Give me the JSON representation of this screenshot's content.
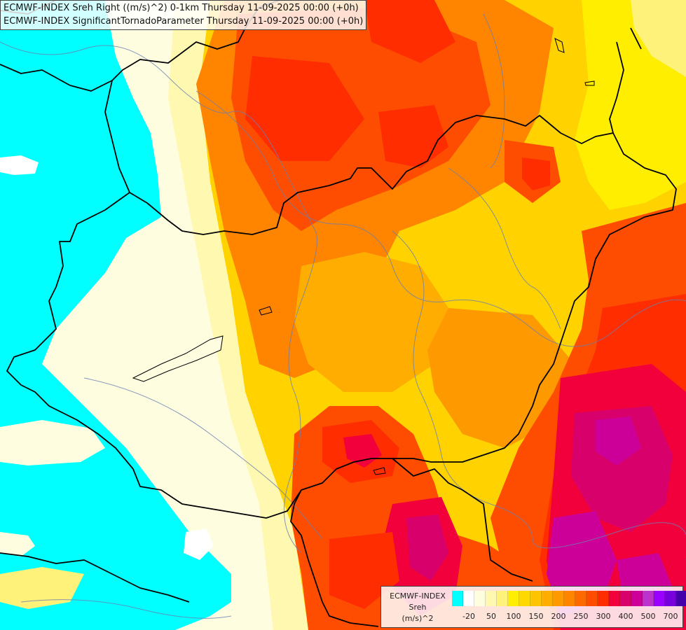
{
  "title": {
    "line1": "ECMWF-INDEX Sreh Right ((m/s)^2) 0-1km Thursday 11-09-2025 00:00 (+0h)",
    "line2": "ECMWF-INDEX SignificantTornadoParameter Thursday 11-09-2025 00:00 (+0h)"
  },
  "legend": {
    "source": "ECMWF-INDEX",
    "variable": "Sreh",
    "unit": "(m/s)^2",
    "colors": [
      "#00ffff",
      "#ffffff",
      "#fffde0",
      "#fff8b0",
      "#fff27a",
      "#ffee00",
      "#ffd800",
      "#ffc400",
      "#ffae00",
      "#ff9900",
      "#ff8400",
      "#ff6a00",
      "#ff4d00",
      "#ff2d00",
      "#f2003c",
      "#d8006a",
      "#cc0099",
      "#bb33cc",
      "#9900ff",
      "#7700dd",
      "#4400aa",
      "#000088"
    ],
    "ticks": [
      {
        "label": "-20",
        "index": 1
      },
      {
        "label": "50",
        "index": 3
      },
      {
        "label": "100",
        "index": 5
      },
      {
        "label": "150",
        "index": 7
      },
      {
        "label": "200",
        "index": 9
      },
      {
        "label": "250",
        "index": 11
      },
      {
        "label": "300",
        "index": 13
      },
      {
        "label": "400",
        "index": 15
      },
      {
        "label": "500",
        "index": 17
      },
      {
        "label": "700",
        "index": 19
      }
    ]
  }
}
